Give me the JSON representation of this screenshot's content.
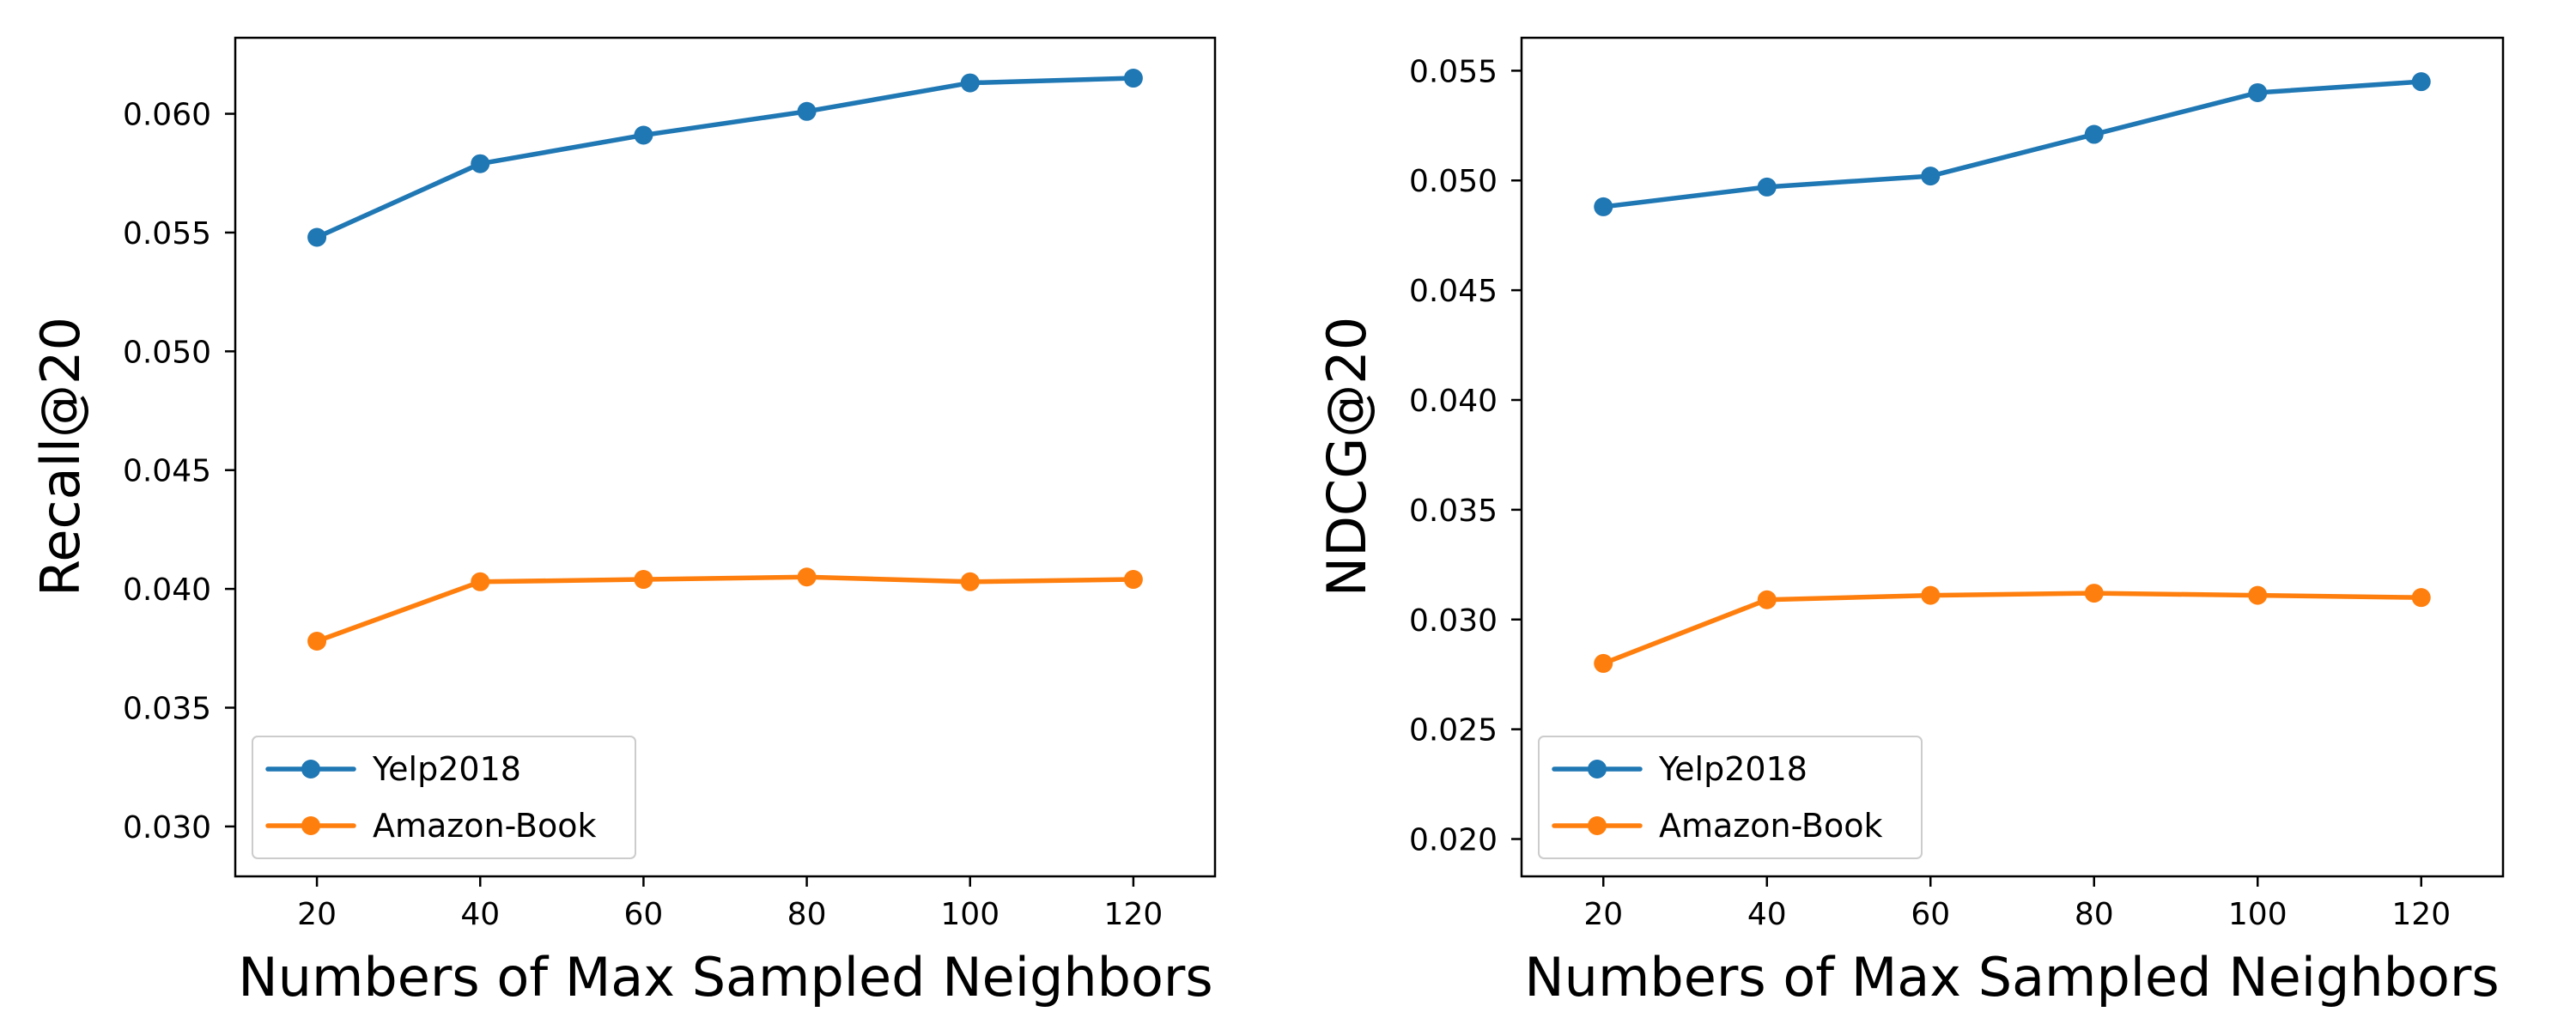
{
  "chart_data": [
    {
      "type": "line",
      "title": "",
      "xlabel": "Numbers of Max Sampled Neighbors",
      "ylabel": "Recall@20",
      "x": [
        20,
        40,
        60,
        80,
        100,
        120
      ],
      "xticks": [
        20,
        40,
        60,
        80,
        100,
        120
      ],
      "xlim": [
        10,
        130
      ],
      "yticks": [
        0.03,
        0.035,
        0.04,
        0.045,
        0.05,
        0.055,
        0.06
      ],
      "ytick_labels": [
        "0.030",
        "0.035",
        "0.040",
        "0.045",
        "0.050",
        "0.055",
        "0.060"
      ],
      "ylim": [
        0.0279,
        0.0632
      ],
      "grid": false,
      "legend_position": "lower-left",
      "series": [
        {
          "name": "Yelp2018",
          "color": "#1f77b4",
          "values": [
            0.0548,
            0.0579,
            0.0591,
            0.0601,
            0.0613,
            0.0615
          ]
        },
        {
          "name": "Amazon-Book",
          "color": "#ff7f0e",
          "values": [
            0.0378,
            0.0403,
            0.0404,
            0.0405,
            0.0403,
            0.0404
          ]
        }
      ]
    },
    {
      "type": "line",
      "title": "",
      "xlabel": "Numbers of Max Sampled Neighbors",
      "ylabel": "NDCG@20",
      "x": [
        20,
        40,
        60,
        80,
        100,
        120
      ],
      "xticks": [
        20,
        40,
        60,
        80,
        100,
        120
      ],
      "xlim": [
        10,
        130
      ],
      "yticks": [
        0.02,
        0.025,
        0.03,
        0.035,
        0.04,
        0.045,
        0.05,
        0.055
      ],
      "ytick_labels": [
        "0.020",
        "0.025",
        "0.030",
        "0.035",
        "0.040",
        "0.045",
        "0.050",
        "0.055"
      ],
      "ylim": [
        0.0183,
        0.0565
      ],
      "grid": false,
      "legend_position": "lower-left",
      "series": [
        {
          "name": "Yelp2018",
          "color": "#1f77b4",
          "values": [
            0.0488,
            0.0497,
            0.0502,
            0.0521,
            0.054,
            0.0545
          ]
        },
        {
          "name": "Amazon-Book",
          "color": "#ff7f0e",
          "values": [
            0.028,
            0.0309,
            0.0311,
            0.0312,
            0.0311,
            0.031
          ]
        }
      ]
    }
  ]
}
